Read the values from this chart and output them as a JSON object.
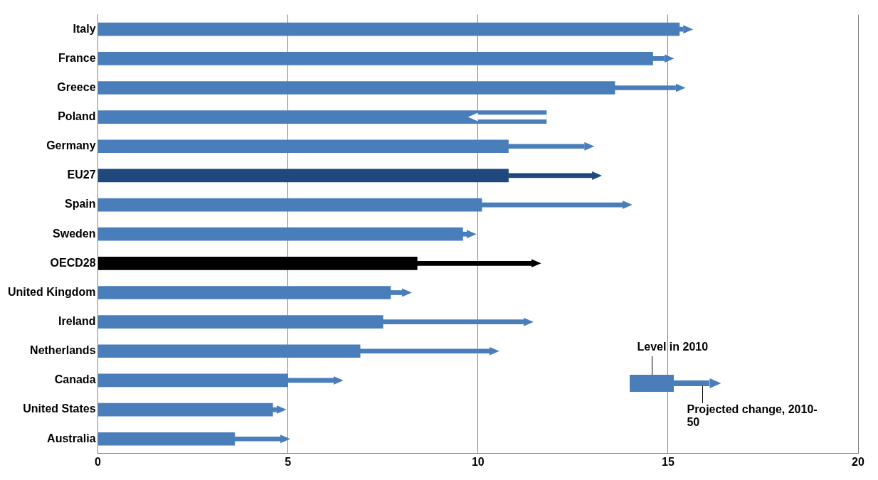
{
  "chart_data": {
    "type": "bar",
    "orientation": "horizontal",
    "categories": [
      "Italy",
      "France",
      "Greece",
      "Poland",
      "Germany",
      "EU27",
      "Spain",
      "Sweden",
      "OECD28",
      "United Kingdom",
      "Ireland",
      "Netherlands",
      "Canada",
      "United States",
      "Australia"
    ],
    "series": [
      {
        "name": "Level in 2010",
        "type": "bar",
        "values": [
          15.3,
          14.6,
          13.6,
          11.8,
          10.8,
          10.8,
          10.1,
          9.6,
          8.4,
          7.7,
          7.5,
          6.9,
          5.0,
          4.6,
          3.6
        ],
        "colors": [
          "#4a7ebb",
          "#4a7ebb",
          "#4a7ebb",
          "#4a7ebb",
          "#4a7ebb",
          "#1f497d",
          "#4a7ebb",
          "#4a7ebb",
          "#000000",
          "#4a7ebb",
          "#4a7ebb",
          "#4a7ebb",
          "#4a7ebb",
          "#4a7ebb",
          "#4a7ebb"
        ]
      },
      {
        "name": "Projected change, 2010-50",
        "type": "bar",
        "base": [
          15.3,
          14.6,
          13.6,
          11.8,
          10.8,
          10.8,
          10.1,
          9.6,
          8.4,
          7.7,
          7.5,
          6.9,
          5.0,
          4.6,
          3.6
        ],
        "values": [
          0.1,
          0.3,
          1.6,
          -1.8,
          2.0,
          2.2,
          3.7,
          0.1,
          3.0,
          0.3,
          3.7,
          3.4,
          1.2,
          0.1,
          1.2
        ],
        "colors": [
          "#4a7ebb",
          "#4a7ebb",
          "#4a7ebb",
          "#ffffff",
          "#4a7ebb",
          "#1f497d",
          "#4a7ebb",
          "#4a7ebb",
          "#000000",
          "#4a7ebb",
          "#4a7ebb",
          "#4a7ebb",
          "#4a7ebb",
          "#4a7ebb",
          "#4a7ebb"
        ]
      }
    ],
    "xlim": [
      0,
      20
    ],
    "xticks": [
      0,
      5,
      10,
      15,
      20
    ],
    "grid": "x",
    "legend": "bottom right"
  }
}
